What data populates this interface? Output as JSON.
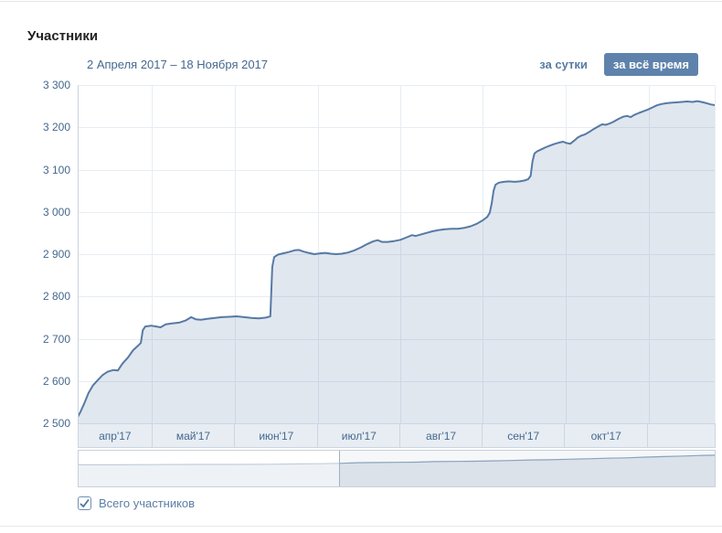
{
  "page": {
    "title": "Участники",
    "period_label": "2 Апреля 2017 – 18 Ноября 2017",
    "controls": {
      "per_day": "за сутки",
      "all_time": "за всё время",
      "selected": "за всё время"
    },
    "legend": {
      "checkbox_label": "Всего участников",
      "checked": true
    }
  },
  "colors": {
    "accent_text": "#45688e",
    "link": "#577ca5",
    "button_bg": "#5e82ab",
    "button_text": "#ffffff",
    "line": "#567aa4",
    "fill": "rgba(86,122,164,0.18)",
    "grid": "#e7edf3",
    "axis": "#c9d3dd",
    "band_bg": "#e7edf3",
    "band_border": "#ccd6e0",
    "nav_bg_selected": "#f5f7f9",
    "nav_fill_selected": "#dbe2ea",
    "nav_fill_masked": "#eef2f6",
    "nav_line_selected": "#8aa3bd",
    "nav_line_masked": "#c2cedb",
    "nav_border": "#c6d0da",
    "nav_handle": "#a3afbd",
    "check": "#4d75a0"
  },
  "chart": {
    "ylim": [
      2500,
      3300
    ],
    "y_ticks": [
      {
        "label": "3 300",
        "value": 3300
      },
      {
        "label": "3 200",
        "value": 3200
      },
      {
        "label": "3 100",
        "value": 3100
      },
      {
        "label": "3 000",
        "value": 3000
      },
      {
        "label": "2 900",
        "value": 2900
      },
      {
        "label": "2 800",
        "value": 2800
      },
      {
        "label": "2 700",
        "value": 2700
      },
      {
        "label": "2 600",
        "value": 2600
      },
      {
        "label": "2 500",
        "value": 2500
      }
    ],
    "months": [
      {
        "label": "апр'17",
        "from": 0,
        "to": 0.116
      },
      {
        "label": "май'17",
        "from": 0.116,
        "to": 0.246
      },
      {
        "label": "июн'17",
        "from": 0.246,
        "to": 0.377
      },
      {
        "label": "июл'17",
        "from": 0.377,
        "to": 0.506
      },
      {
        "label": "авг'17",
        "from": 0.506,
        "to": 0.635
      },
      {
        "label": "сен'17",
        "from": 0.635,
        "to": 0.765
      },
      {
        "label": "окт'17",
        "from": 0.765,
        "to": 0.895
      },
      {
        "label": "",
        "from": 0.895,
        "to": 1
      }
    ]
  },
  "chart_data": {
    "type": "area",
    "title": "Участники",
    "subtitle": "2 Апреля 2017 – 18 Ноября 2017",
    "x_unit": "fraction_of_period (0 = 2 Апреля 2017, 1 = 18 Ноября 2017)",
    "xlabel": "",
    "ylabel": "Участники",
    "ylim": [
      2500,
      3300
    ],
    "grid": true,
    "legend_entries": [
      "Всего участников"
    ],
    "series": [
      {
        "name": "Всего участников",
        "points": [
          [
            0,
            2515
          ],
          [
            0.004,
            2526
          ],
          [
            0.01,
            2546
          ],
          [
            0.017,
            2572
          ],
          [
            0.024,
            2590
          ],
          [
            0.032,
            2603
          ],
          [
            0.039,
            2614
          ],
          [
            0.047,
            2622
          ],
          [
            0.056,
            2626
          ],
          [
            0.063,
            2625
          ],
          [
            0.07,
            2641
          ],
          [
            0.079,
            2656
          ],
          [
            0.087,
            2673
          ],
          [
            0.095,
            2684
          ],
          [
            0.099,
            2690
          ],
          [
            0.102,
            2720
          ],
          [
            0.106,
            2729
          ],
          [
            0.115,
            2731
          ],
          [
            0.123,
            2729
          ],
          [
            0.13,
            2727
          ],
          [
            0.138,
            2734
          ],
          [
            0.148,
            2736
          ],
          [
            0.159,
            2738
          ],
          [
            0.169,
            2743
          ],
          [
            0.178,
            2751
          ],
          [
            0.185,
            2746
          ],
          [
            0.193,
            2745
          ],
          [
            0.203,
            2747
          ],
          [
            0.215,
            2749
          ],
          [
            0.226,
            2751
          ],
          [
            0.238,
            2752
          ],
          [
            0.249,
            2753
          ],
          [
            0.261,
            2751
          ],
          [
            0.272,
            2749
          ],
          [
            0.284,
            2748
          ],
          [
            0.295,
            2750
          ],
          [
            0.302,
            2753
          ],
          [
            0.305,
            2870
          ],
          [
            0.308,
            2893
          ],
          [
            0.314,
            2899
          ],
          [
            0.322,
            2902
          ],
          [
            0.331,
            2905
          ],
          [
            0.34,
            2909
          ],
          [
            0.347,
            2910
          ],
          [
            0.354,
            2906
          ],
          [
            0.362,
            2903
          ],
          [
            0.371,
            2900
          ],
          [
            0.38,
            2902
          ],
          [
            0.388,
            2903
          ],
          [
            0.397,
            2901
          ],
          [
            0.405,
            2900
          ],
          [
            0.414,
            2901
          ],
          [
            0.424,
            2904
          ],
          [
            0.434,
            2909
          ],
          [
            0.444,
            2916
          ],
          [
            0.454,
            2924
          ],
          [
            0.463,
            2930
          ],
          [
            0.47,
            2933
          ],
          [
            0.477,
            2929
          ],
          [
            0.486,
            2929
          ],
          [
            0.496,
            2931
          ],
          [
            0.506,
            2934
          ],
          [
            0.516,
            2940
          ],
          [
            0.524,
            2945
          ],
          [
            0.53,
            2943
          ],
          [
            0.537,
            2946
          ],
          [
            0.546,
            2950
          ],
          [
            0.556,
            2954
          ],
          [
            0.566,
            2957
          ],
          [
            0.576,
            2959
          ],
          [
            0.586,
            2960
          ],
          [
            0.596,
            2960
          ],
          [
            0.606,
            2962
          ],
          [
            0.616,
            2966
          ],
          [
            0.626,
            2972
          ],
          [
            0.635,
            2980
          ],
          [
            0.642,
            2988
          ],
          [
            0.646,
            2998
          ],
          [
            0.649,
            3020
          ],
          [
            0.652,
            3050
          ],
          [
            0.655,
            3064
          ],
          [
            0.66,
            3069
          ],
          [
            0.668,
            3071
          ],
          [
            0.676,
            3072
          ],
          [
            0.685,
            3071
          ],
          [
            0.693,
            3072
          ],
          [
            0.7,
            3074
          ],
          [
            0.706,
            3077
          ],
          [
            0.71,
            3085
          ],
          [
            0.713,
            3120
          ],
          [
            0.716,
            3138
          ],
          [
            0.72,
            3143
          ],
          [
            0.727,
            3148
          ],
          [
            0.734,
            3153
          ],
          [
            0.741,
            3157
          ],
          [
            0.748,
            3161
          ],
          [
            0.755,
            3164
          ],
          [
            0.761,
            3166
          ],
          [
            0.766,
            3163
          ],
          [
            0.772,
            3161
          ],
          [
            0.778,
            3168
          ],
          [
            0.784,
            3176
          ],
          [
            0.789,
            3180
          ],
          [
            0.795,
            3183
          ],
          [
            0.802,
            3189
          ],
          [
            0.809,
            3196
          ],
          [
            0.817,
            3203
          ],
          [
            0.822,
            3207
          ],
          [
            0.828,
            3206
          ],
          [
            0.834,
            3209
          ],
          [
            0.841,
            3214
          ],
          [
            0.848,
            3220
          ],
          [
            0.855,
            3225
          ],
          [
            0.861,
            3227
          ],
          [
            0.867,
            3224
          ],
          [
            0.872,
            3229
          ],
          [
            0.88,
            3234
          ],
          [
            0.887,
            3238
          ],
          [
            0.894,
            3242
          ],
          [
            0.901,
            3247
          ],
          [
            0.908,
            3252
          ],
          [
            0.915,
            3255
          ],
          [
            0.923,
            3257
          ],
          [
            0.93,
            3258
          ],
          [
            0.938,
            3259
          ],
          [
            0.947,
            3260
          ],
          [
            0.955,
            3261
          ],
          [
            0.964,
            3260
          ],
          [
            0.971,
            3262
          ],
          [
            0.978,
            3260
          ],
          [
            0.986,
            3257
          ],
          [
            0.993,
            3254
          ],
          [
            1,
            3252
          ]
        ]
      }
    ]
  },
  "navigator": {
    "split": 0.41,
    "y_unit": "fraction_from_top_of_navigator",
    "mini_points": [
      [
        0,
        0.4
      ],
      [
        0.06,
        0.4
      ],
      [
        0.12,
        0.395
      ],
      [
        0.18,
        0.39
      ],
      [
        0.24,
        0.39
      ],
      [
        0.3,
        0.385
      ],
      [
        0.35,
        0.375
      ],
      [
        0.38,
        0.37
      ],
      [
        0.41,
        0.36
      ],
      [
        0.44,
        0.345
      ],
      [
        0.47,
        0.34
      ],
      [
        0.5,
        0.335
      ],
      [
        0.53,
        0.33
      ],
      [
        0.56,
        0.315
      ],
      [
        0.59,
        0.31
      ],
      [
        0.62,
        0.305
      ],
      [
        0.65,
        0.295
      ],
      [
        0.68,
        0.285
      ],
      [
        0.71,
        0.27
      ],
      [
        0.74,
        0.265
      ],
      [
        0.77,
        0.25
      ],
      [
        0.8,
        0.24
      ],
      [
        0.83,
        0.225
      ],
      [
        0.86,
        0.215
      ],
      [
        0.89,
        0.195
      ],
      [
        0.92,
        0.18
      ],
      [
        0.95,
        0.165
      ],
      [
        0.98,
        0.15
      ],
      [
        1,
        0.145
      ]
    ]
  }
}
